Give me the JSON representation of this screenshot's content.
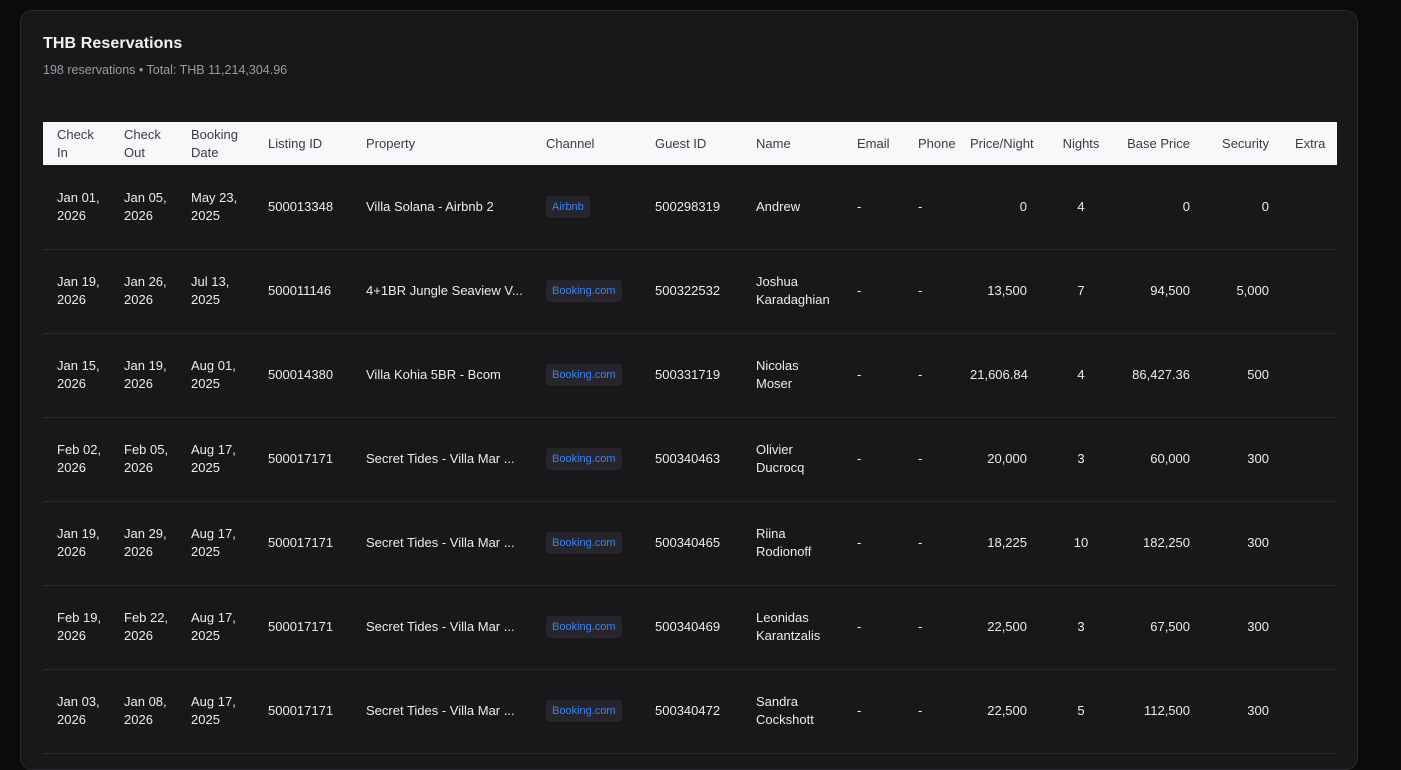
{
  "header": {
    "title": "THB Reservations",
    "subtitle": "198 reservations • Total: THB 11,214,304.96"
  },
  "table": {
    "columns": [
      "Check In",
      "Check Out",
      "Booking Date",
      "Listing ID",
      "Property",
      "Channel",
      "Guest ID",
      "Name",
      "Email",
      "Phone",
      "Price/Night",
      "Nights",
      "Base Price",
      "Security",
      "Extra"
    ],
    "rows": [
      {
        "check_in": "Jan 01, 2026",
        "check_out": "Jan 05, 2026",
        "booking_date": "May 23, 2025",
        "listing_id": "500013348",
        "property": "Villa Solana - Airbnb 2",
        "channel": "Airbnb",
        "guest_id": "500298319",
        "name": "Andrew",
        "email": "-",
        "phone": "-",
        "price_night": "0",
        "nights": "4",
        "base_price": "0",
        "security": "0"
      },
      {
        "check_in": "Jan 19, 2026",
        "check_out": "Jan 26, 2026",
        "booking_date": "Jul 13, 2025",
        "listing_id": "500011146",
        "property": "4+1BR Jungle Seaview V...",
        "channel": "Booking.com",
        "guest_id": "500322532",
        "name": "Joshua Karadaghian",
        "email": "-",
        "phone": "-",
        "price_night": "13,500",
        "nights": "7",
        "base_price": "94,500",
        "security": "5,000"
      },
      {
        "check_in": "Jan 15, 2026",
        "check_out": "Jan 19, 2026",
        "booking_date": "Aug 01, 2025",
        "listing_id": "500014380",
        "property": "Villa Kohia 5BR - Bcom",
        "channel": "Booking.com",
        "guest_id": "500331719",
        "name": "Nicolas Moser",
        "email": "-",
        "phone": "-",
        "price_night": "21,606.84",
        "nights": "4",
        "base_price": "86,427.36",
        "security": "500"
      },
      {
        "check_in": "Feb 02, 2026",
        "check_out": "Feb 05, 2026",
        "booking_date": "Aug 17, 2025",
        "listing_id": "500017171",
        "property": "Secret Tides - Villa Mar ...",
        "channel": "Booking.com",
        "guest_id": "500340463",
        "name": "Olivier Ducrocq",
        "email": "-",
        "phone": "-",
        "price_night": "20,000",
        "nights": "3",
        "base_price": "60,000",
        "security": "300"
      },
      {
        "check_in": "Jan 19, 2026",
        "check_out": "Jan 29, 2026",
        "booking_date": "Aug 17, 2025",
        "listing_id": "500017171",
        "property": "Secret Tides - Villa Mar ...",
        "channel": "Booking.com",
        "guest_id": "500340465",
        "name": "Riina Rodionoff",
        "email": "-",
        "phone": "-",
        "price_night": "18,225",
        "nights": "10",
        "base_price": "182,250",
        "security": "300"
      },
      {
        "check_in": "Feb 19, 2026",
        "check_out": "Feb 22, 2026",
        "booking_date": "Aug 17, 2025",
        "listing_id": "500017171",
        "property": "Secret Tides - Villa Mar ...",
        "channel": "Booking.com",
        "guest_id": "500340469",
        "name": "Leonidas Karantzalis",
        "email": "-",
        "phone": "-",
        "price_night": "22,500",
        "nights": "3",
        "base_price": "67,500",
        "security": "300"
      },
      {
        "check_in": "Jan 03, 2026",
        "check_out": "Jan 08, 2026",
        "booking_date": "Aug 17, 2025",
        "listing_id": "500017171",
        "property": "Secret Tides - Villa Mar ...",
        "channel": "Booking.com",
        "guest_id": "500340472",
        "name": "Sandra Cockshott",
        "email": "-",
        "phone": "-",
        "price_night": "22,500",
        "nights": "5",
        "base_price": "112,500",
        "security": "300"
      }
    ]
  }
}
